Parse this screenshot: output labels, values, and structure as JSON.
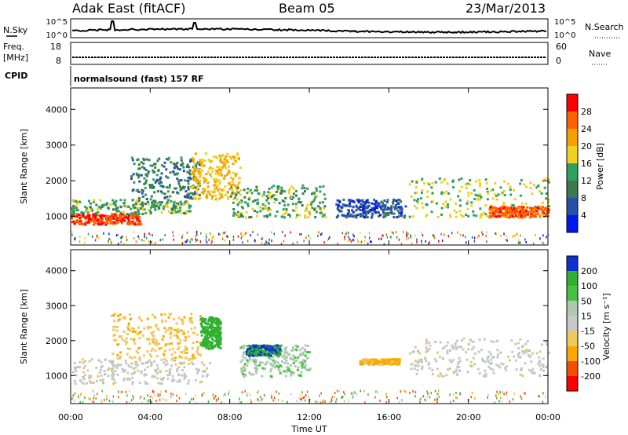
{
  "header": {
    "station": "Adak East (fitACF)",
    "beam": "Beam 05",
    "date": "23/Mar/2013"
  },
  "noise_panel": {
    "left_label": "N.Sky",
    "right_label": "N.Search",
    "left_ticks": [
      "10^5",
      "10^0"
    ],
    "right_ticks": [
      "10^5",
      "10^0"
    ]
  },
  "freq_panel": {
    "label_line1": "Freq.",
    "label_line2": "[MHz]",
    "left_ticks": [
      "18",
      "8"
    ],
    "right_label": "Nave",
    "right_ticks": [
      "60",
      "0"
    ]
  },
  "cpid_panel": {
    "label": "CPID",
    "mode": "normalsound (fast) 157 RF"
  },
  "colors": {
    "power_scale": [
      "#0018f0",
      "#2850a8",
      "#3c7850",
      "#30a060",
      "#f0d020",
      "#f8a000",
      "#ff6000",
      "#ff0000"
    ],
    "velocity_scale": [
      "#ff0000",
      "#f05000",
      "#f8a800",
      "#f0c860",
      "#c8c8c8",
      "#b0c8b0",
      "#48c040",
      "#30b030",
      "#1030d0"
    ],
    "ground_scatter": "#bdbdbd"
  },
  "chart_data": [
    {
      "type": "heatmap",
      "name_hint": "power",
      "ylabel": "Slant Range [km]",
      "yticks": [
        "1000",
        "2000",
        "3000",
        "4000"
      ],
      "ylim": [
        200,
        4600
      ],
      "xlim_hours": [
        0,
        24
      ],
      "colorbar": {
        "label": "Power [dB]",
        "ticks": [
          "4",
          "8",
          "12",
          "16",
          "20",
          "24",
          "28"
        ],
        "range": [
          0,
          32
        ]
      },
      "features": [
        {
          "kind": "band",
          "t": [
            0.0,
            3.5
          ],
          "r": [
            800,
            1100
          ],
          "value": 28
        },
        {
          "kind": "band",
          "t": [
            0.0,
            6.0
          ],
          "r": [
            1100,
            1500
          ],
          "value": 14
        },
        {
          "kind": "band",
          "t": [
            3.0,
            6.5
          ],
          "r": [
            1500,
            2700
          ],
          "value": 10
        },
        {
          "kind": "band",
          "t": [
            6.0,
            8.5
          ],
          "r": [
            1500,
            2800
          ],
          "value": 20
        },
        {
          "kind": "band",
          "t": [
            8.0,
            12.8
          ],
          "r": [
            1000,
            1900
          ],
          "value": 14
        },
        {
          "kind": "band",
          "t": [
            13.3,
            16.8
          ],
          "r": [
            1000,
            1500
          ],
          "value": 6
        },
        {
          "kind": "band",
          "t": [
            17.0,
            24.0
          ],
          "r": [
            1000,
            2100
          ],
          "value": 16
        },
        {
          "kind": "band",
          "t": [
            21.0,
            24.0
          ],
          "r": [
            1000,
            1300
          ],
          "value": 26
        }
      ]
    },
    {
      "type": "heatmap",
      "name_hint": "velocity",
      "ylabel": "Slant Range [km]",
      "yticks": [
        "1000",
        "2000",
        "3000",
        "4000"
      ],
      "ylim": [
        200,
        4600
      ],
      "xlim_hours": [
        0,
        24
      ],
      "xticks": [
        "00:00",
        "04:00",
        "08:00",
        "12:00",
        "16:00",
        "20:00",
        "00:00"
      ],
      "xlabel": "Time UT",
      "colorbar": {
        "label": "Velocity [m s⁻¹]",
        "ticks": [
          "200",
          "100",
          "50",
          "15",
          "-15",
          "-50",
          "-100",
          "-200"
        ],
        "range": [
          -250,
          250
        ]
      },
      "features": [
        {
          "kind": "band",
          "t": [
            0.0,
            7.0
          ],
          "r": [
            800,
            1500
          ],
          "value": 0
        },
        {
          "kind": "band",
          "t": [
            2.0,
            6.5
          ],
          "r": [
            1500,
            2800
          ],
          "value": -40
        },
        {
          "kind": "band",
          "t": [
            6.5,
            7.5
          ],
          "r": [
            1800,
            2700
          ],
          "value": 180
        },
        {
          "kind": "band",
          "t": [
            8.5,
            12.0
          ],
          "r": [
            1000,
            1900
          ],
          "value": 40
        },
        {
          "kind": "band",
          "t": [
            8.8,
            10.5
          ],
          "r": [
            1600,
            1900
          ],
          "value": 200
        },
        {
          "kind": "band",
          "t": [
            14.5,
            16.5
          ],
          "r": [
            1350,
            1500
          ],
          "value": -60
        },
        {
          "kind": "band",
          "t": [
            17.0,
            24.0
          ],
          "r": [
            1000,
            2100
          ],
          "value": 0
        }
      ]
    }
  ]
}
